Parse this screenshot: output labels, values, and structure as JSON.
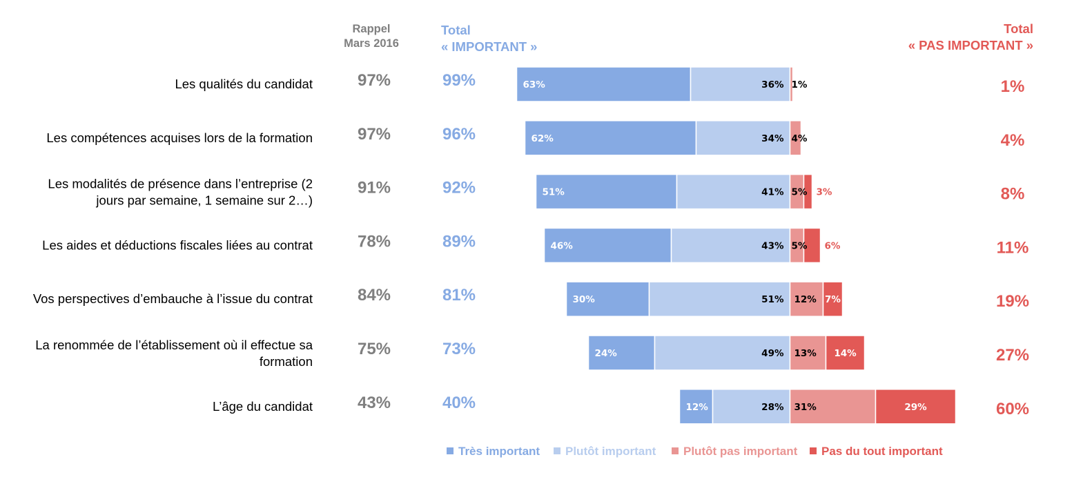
{
  "headers": {
    "rappel_line1": "Rappel",
    "rappel_line2": "Mars 2016",
    "total_imp_line1": "Total",
    "total_imp_line2": "« IMPORTANT »",
    "total_pas_line1": "Total",
    "total_pas_line2": "« PAS IMPORTANT »"
  },
  "colors": {
    "tres_important": "#86aae3",
    "plutot_important": "#b8cdee",
    "plutot_pas_important": "#e99593",
    "pas_du_tout_important": "#e25956",
    "rappel_text": "#7f7f7f",
    "total_important_text": "#86aae3",
    "total_pas_important_text": "#e25956"
  },
  "chart_data": {
    "type": "bar",
    "orientation": "horizontal",
    "stacked": "diverging",
    "categories": [
      [
        "Les qualités du candidat"
      ],
      [
        "Les compétences acquises lors de la formation"
      ],
      [
        "Les modalités de présence dans l’entreprise (2",
        "jours par semaine, 1 semaine sur 2…)"
      ],
      [
        "Les aides et déductions fiscales liées au contrat"
      ],
      [
        "Vos perspectives d’embauche à l’issue du contrat"
      ],
      [
        "La renommée de l’établissement où il effectue sa",
        "formation"
      ],
      [
        "L’âge du candidat"
      ]
    ],
    "series": [
      {
        "name": "Très important",
        "values": [
          63,
          62,
          51,
          46,
          30,
          24,
          12
        ]
      },
      {
        "name": "Plutôt important",
        "values": [
          36,
          34,
          41,
          43,
          51,
          49,
          28
        ]
      },
      {
        "name": "Plutôt pas important",
        "values": [
          1,
          4,
          5,
          5,
          12,
          13,
          31
        ]
      },
      {
        "name": "Pas du tout important",
        "values": [
          0,
          0,
          3,
          6,
          7,
          14,
          29
        ]
      }
    ],
    "segment_labels": [
      [
        "63%",
        "36%",
        "1%",
        ""
      ],
      [
        "62%",
        "34%",
        "4%",
        ""
      ],
      [
        "51%",
        "41%",
        "5%",
        "3%"
      ],
      [
        "46%",
        "43%",
        "5%",
        "6%"
      ],
      [
        "30%",
        "51%",
        "12%",
        "7%"
      ],
      [
        "24%",
        "49%",
        "13%",
        "14%"
      ],
      [
        "12%",
        "28%",
        "31%",
        "29%"
      ]
    ],
    "rappel_mars_2016": [
      "97%",
      "97%",
      "91%",
      "78%",
      "84%",
      "75%",
      "43%"
    ],
    "total_important": [
      "99%",
      "96%",
      "92%",
      "89%",
      "81%",
      "73%",
      "40%"
    ],
    "total_pas_important": [
      "1%",
      "4%",
      "8%",
      "11%",
      "19%",
      "27%",
      "60%"
    ],
    "legend_position": "bottom",
    "grid": false
  }
}
